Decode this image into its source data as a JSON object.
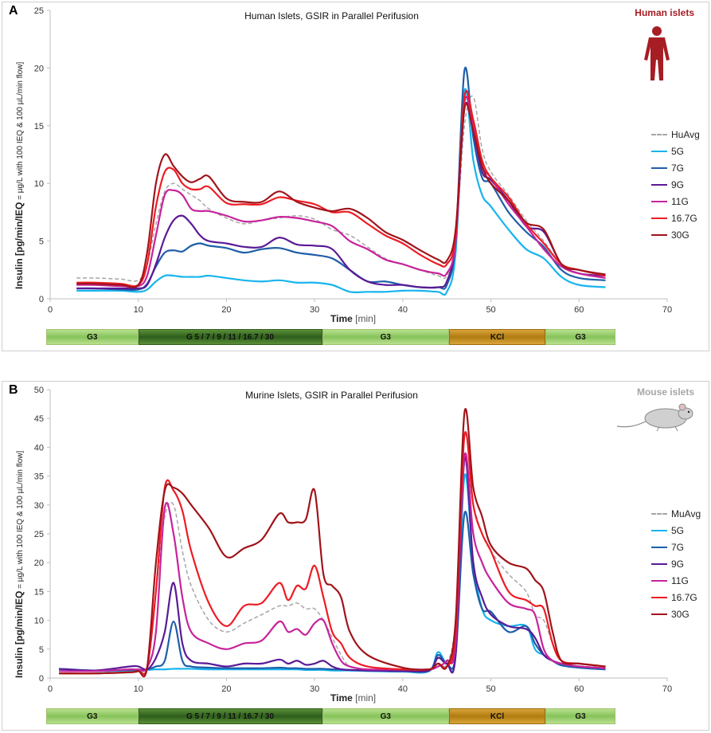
{
  "panels": [
    {
      "label": "A",
      "title": "Human Islets, GSIR in Parallel Perifusion",
      "species_label": "Human islets",
      "species_color": "#a61d24",
      "icon": "human-figure-icon",
      "ylabel_main": "Insulin [pg/min/IEQ",
      "ylabel_sub": " = µg/L with 100 IEQ & 100 µL/min flow]",
      "xlabel": "Time",
      "xunit": " [min]",
      "protocol": [
        {
          "label": "G3",
          "start": 0,
          "end": 10.5,
          "kind": "g3"
        },
        {
          "label": "G 5 / 7 / 9 / 11 / 16.7 / 30",
          "start": 10.5,
          "end": 31.5,
          "kind": "glu"
        },
        {
          "label": "G3",
          "start": 31.5,
          "end": 46,
          "kind": "g3"
        },
        {
          "label": "KCl",
          "start": 46,
          "end": 57,
          "kind": "kcl"
        },
        {
          "label": "G3",
          "start": 57,
          "end": 65,
          "kind": "g3"
        }
      ],
      "chart_data": {
        "type": "line",
        "xlim": [
          0,
          70
        ],
        "ylim": [
          0,
          25
        ],
        "xticks": [
          0,
          10,
          20,
          30,
          40,
          50,
          60,
          70
        ],
        "yticks": [
          0,
          5,
          10,
          15,
          20,
          25
        ],
        "x": [
          3,
          5,
          8,
          10,
          11,
          12,
          13,
          14,
          15,
          16,
          17,
          18,
          20,
          22,
          24,
          26,
          28,
          30,
          32,
          34,
          36,
          38,
          40,
          42,
          44,
          45,
          46,
          47,
          48,
          49,
          50,
          52,
          54,
          56,
          58,
          60,
          63
        ],
        "series": [
          {
            "name": "HuAvg",
            "color": "#a6a6a6",
            "dashed": true,
            "values": [
              1.8,
              1.8,
              1.7,
              1.6,
              3.0,
              6.5,
              9.3,
              10.0,
              9.5,
              9.0,
              8.5,
              7.8,
              7.0,
              6.5,
              6.8,
              7.0,
              7.2,
              6.9,
              6.0,
              5.5,
              4.5,
              3.5,
              3.0,
              2.5,
              2.0,
              2.0,
              5.0,
              15.0,
              17.5,
              13.0,
              11.0,
              9.0,
              6.8,
              5.0,
              3.0,
              2.5,
              2.0
            ]
          },
          {
            "name": "5G",
            "color": "#18b4ee",
            "values": [
              0.7,
              0.7,
              0.7,
              0.6,
              0.8,
              1.5,
              2.0,
              2.0,
              1.9,
              1.9,
              1.9,
              2.0,
              1.8,
              1.6,
              1.5,
              1.6,
              1.4,
              1.4,
              1.2,
              0.6,
              0.6,
              0.6,
              0.7,
              0.7,
              0.6,
              0.6,
              4.0,
              18.0,
              12.0,
              9.0,
              8.0,
              6.0,
              4.3,
              3.5,
              1.9,
              1.2,
              1.0
            ]
          },
          {
            "name": "7G",
            "color": "#1e5ea8",
            "values": [
              0.9,
              0.9,
              0.8,
              0.8,
              1.3,
              2.8,
              4.0,
              4.2,
              4.1,
              4.6,
              4.8,
              4.6,
              4.4,
              4.0,
              4.3,
              4.4,
              4.0,
              3.8,
              3.5,
              2.5,
              1.5,
              1.5,
              1.2,
              1.0,
              1.0,
              1.2,
              5.0,
              19.8,
              14.0,
              10.5,
              10.0,
              7.5,
              5.8,
              4.5,
              2.5,
              1.8,
              1.6
            ]
          },
          {
            "name": "9G",
            "color": "#5a1a96",
            "values": [
              0.9,
              0.9,
              0.9,
              0.9,
              1.2,
              3.0,
              5.3,
              6.8,
              7.2,
              6.5,
              5.5,
              5.0,
              4.8,
              4.5,
              4.5,
              5.3,
              4.7,
              4.6,
              4.3,
              2.5,
              1.5,
              1.2,
              1.2,
              1.0,
              1.0,
              1.5,
              5.0,
              16.5,
              14.5,
              11.0,
              10.3,
              8.5,
              6.3,
              5.8,
              3.0,
              2.2,
              2.0
            ]
          },
          {
            "name": "11G",
            "color": "#c7239b",
            "values": [
              1.2,
              1.2,
              1.1,
              1.1,
              2.0,
              5.5,
              9.0,
              9.4,
              9.0,
              7.8,
              7.6,
              7.6,
              7.2,
              6.7,
              6.8,
              7.1,
              7.0,
              6.7,
              6.3,
              5.0,
              4.3,
              3.4,
              3.0,
              2.5,
              2.2,
              2.2,
              5.0,
              17.0,
              15.0,
              11.5,
              10.5,
              8.2,
              6.3,
              4.3,
              2.8,
              2.2,
              1.8
            ]
          },
          {
            "name": "16.7G",
            "color": "#ed1c24",
            "values": [
              1.4,
              1.4,
              1.3,
              1.2,
              3.0,
              8.0,
              11.0,
              11.2,
              10.0,
              9.5,
              9.5,
              9.7,
              8.3,
              8.2,
              8.2,
              8.8,
              8.5,
              8.2,
              7.5,
              7.5,
              6.5,
              5.5,
              4.8,
              3.8,
              3.0,
              3.0,
              5.5,
              17.5,
              15.5,
              12.0,
              10.5,
              8.8,
              6.5,
              4.8,
              3.0,
              2.5,
              2.0
            ]
          },
          {
            "name": "30G",
            "color": "#a0141a",
            "values": [
              1.3,
              1.3,
              1.2,
              1.2,
              4.0,
              10.0,
              12.5,
              11.5,
              10.6,
              10.1,
              10.4,
              10.6,
              8.7,
              8.4,
              8.4,
              9.3,
              8.4,
              7.9,
              7.6,
              7.8,
              7.0,
              5.8,
              5.1,
              4.2,
              3.4,
              3.3,
              6.0,
              16.5,
              14.5,
              11.5,
              10.0,
              8.5,
              6.6,
              6.0,
              3.0,
              2.5,
              2.1
            ]
          }
        ]
      }
    },
    {
      "label": "B",
      "title": "Murine Islets, GSIR in Parallel Perifusion",
      "species_label": "Mouse islets",
      "species_color": "#a6a6a6",
      "icon": "mouse-icon",
      "ylabel_main": "Insulin [pg/min/IEQ",
      "ylabel_sub": " = µg/L with 100 IEQ & 100 µL/min flow]",
      "xlabel": "Time",
      "xunit": " [min]",
      "protocol": [
        {
          "label": "G3",
          "start": 0,
          "end": 10.5,
          "kind": "g3"
        },
        {
          "label": "G 5 / 7 / 9 / 11 / 16.7 / 30",
          "start": 10.5,
          "end": 31.5,
          "kind": "glu"
        },
        {
          "label": "G3",
          "start": 31.5,
          "end": 46,
          "kind": "g3"
        },
        {
          "label": "KCl",
          "start": 46,
          "end": 57,
          "kind": "kcl"
        },
        {
          "label": "G3",
          "start": 57,
          "end": 65,
          "kind": "g3"
        }
      ],
      "chart_data": {
        "type": "line",
        "xlim": [
          0,
          70
        ],
        "ylim": [
          0,
          50
        ],
        "xticks": [
          0,
          10,
          20,
          30,
          40,
          50,
          60,
          70
        ],
        "yticks": [
          0,
          5,
          10,
          15,
          20,
          25,
          30,
          35,
          40,
          45,
          50
        ],
        "x": [
          1,
          5,
          9,
          10,
          11,
          12,
          13,
          14,
          15,
          16,
          18,
          20,
          22,
          24,
          26,
          27,
          28,
          29,
          30,
          31,
          32,
          33,
          34,
          36,
          40,
          43,
          44,
          45,
          46,
          47,
          48,
          49,
          50,
          52,
          54,
          55,
          56,
          57,
          58,
          60,
          63
        ],
        "series": [
          {
            "name": "MuAvg",
            "color": "#a6a6a6",
            "dashed": true,
            "values": [
              1.2,
              1.2,
              1.3,
              1.5,
              2.0,
              15.0,
              28.0,
              30.0,
              22.0,
              16.0,
              10.0,
              8.0,
              9.5,
              11.0,
              12.5,
              12.5,
              13.0,
              12.0,
              12.0,
              10.0,
              7.0,
              4.0,
              2.0,
              1.5,
              1.5,
              1.5,
              2.5,
              2.5,
              10.0,
              37.0,
              30.0,
              25.0,
              22.0,
              18.0,
              15.0,
              11.0,
              10.0,
              6.0,
              3.0,
              2.5,
              2.0
            ]
          },
          {
            "name": "5G",
            "color": "#18b4ee",
            "values": [
              1.5,
              1.2,
              1.3,
              1.3,
              1.4,
              1.5,
              1.5,
              1.6,
              1.6,
              1.6,
              1.5,
              1.5,
              1.5,
              1.5,
              1.5,
              1.5,
              1.5,
              1.4,
              1.4,
              1.4,
              1.3,
              1.3,
              1.3,
              1.2,
              1.1,
              1.2,
              4.5,
              2.5,
              4.0,
              35.0,
              20.0,
              12.0,
              10.0,
              9.0,
              9.0,
              5.0,
              4.0,
              3.0,
              2.2,
              1.8,
              1.5
            ]
          },
          {
            "name": "7G",
            "color": "#1e5ea8",
            "values": [
              1.6,
              1.3,
              1.4,
              1.4,
              1.5,
              2.0,
              3.0,
              9.8,
              3.0,
              2.0,
              1.8,
              1.7,
              1.7,
              1.7,
              1.8,
              1.7,
              1.7,
              1.6,
              1.6,
              1.6,
              1.5,
              1.5,
              1.4,
              1.3,
              1.2,
              1.3,
              4.0,
              2.5,
              4.0,
              28.5,
              18.0,
              12.0,
              11.5,
              8.0,
              9.0,
              6.0,
              4.0,
              3.0,
              2.2,
              1.8,
              1.5
            ]
          },
          {
            "name": "9G",
            "color": "#5a1a96",
            "values": [
              1.6,
              1.3,
              2.0,
              2.0,
              1.5,
              3.5,
              8.0,
              16.5,
              6.0,
              3.0,
              2.5,
              2.0,
              2.5,
              2.5,
              3.2,
              2.5,
              3.0,
              2.3,
              2.5,
              3.0,
              2.0,
              1.5,
              1.4,
              1.3,
              1.2,
              1.3,
              3.5,
              2.5,
              4.0,
              38.0,
              20.0,
              14.0,
              11.0,
              9.0,
              8.5,
              7.0,
              4.0,
              3.0,
              2.5,
              2.0,
              1.7
            ]
          },
          {
            "name": "11G",
            "color": "#c7239b",
            "values": [
              1.2,
              1.2,
              1.5,
              1.5,
              1.8,
              8.0,
              29.5,
              25.0,
              14.0,
              8.0,
              6.0,
              5.0,
              6.0,
              6.5,
              9.8,
              8.0,
              8.5,
              7.5,
              9.5,
              10.0,
              6.0,
              3.0,
              2.0,
              1.5,
              1.5,
              1.5,
              2.0,
              3.0,
              6.0,
              38.5,
              25.0,
              20.0,
              17.0,
              13.0,
              12.0,
              11.0,
              5.0,
              3.0,
              2.5,
              2.0,
              1.7
            ]
          },
          {
            "name": "16.7G",
            "color": "#ed1c24",
            "values": [
              0.8,
              0.8,
              1.0,
              1.2,
              1.8,
              15.0,
              33.0,
              32.5,
              29.0,
              22.0,
              13.0,
              9.0,
              12.5,
              13.0,
              16.5,
              13.5,
              16.0,
              15.5,
              19.5,
              14.0,
              8.0,
              6.0,
              3.5,
              2.0,
              1.5,
              1.5,
              2.5,
              2.0,
              8.0,
              42.0,
              30.0,
              25.0,
              22.0,
              15.0,
              13.5,
              12.5,
              12.0,
              6.0,
              3.0,
              2.5,
              2.0
            ]
          },
          {
            "name": "30G",
            "color": "#a0141a",
            "values": [
              0.8,
              0.8,
              1.0,
              1.2,
              1.8,
              20.0,
              32.5,
              33.0,
              32.0,
              30.0,
              26.0,
              21.0,
              22.5,
              24.0,
              28.5,
              27.0,
              27.0,
              27.5,
              32.5,
              18.0,
              16.0,
              14.0,
              8.0,
              4.0,
              1.8,
              1.5,
              2.5,
              2.0,
              10.0,
              46.0,
              33.0,
              28.0,
              23.0,
              20.0,
              19.0,
              17.0,
              15.0,
              8.0,
              3.0,
              2.5,
              2.0
            ]
          }
        ]
      }
    }
  ]
}
